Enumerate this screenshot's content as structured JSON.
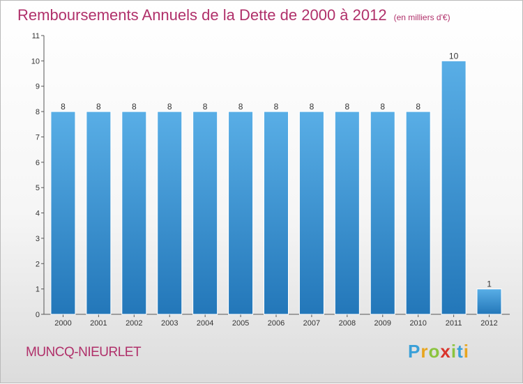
{
  "title": "Remboursements Annuels de la Dette de 2000 à 2012",
  "unit": "(en milliers d'€)",
  "town": "MUNCQ-NIEURLET",
  "logo": {
    "letters": [
      "P",
      "r",
      "o",
      "x",
      "i",
      "t",
      "i"
    ],
    "colors": [
      "#3aa0d8",
      "#e8a51e",
      "#8bc43f",
      "#d9342b",
      "#8bc43f",
      "#3aa0d8",
      "#e8a51e"
    ]
  },
  "colors": {
    "title": "#b0306a",
    "bar_top": "#59aee6",
    "bar_bottom": "#2377b9"
  },
  "chart_data": {
    "type": "bar",
    "categories": [
      "2000",
      "2001",
      "2002",
      "2003",
      "2004",
      "2005",
      "2006",
      "2007",
      "2008",
      "2009",
      "2010",
      "2011",
      "2012"
    ],
    "values": [
      8,
      8,
      8,
      8,
      8,
      8,
      8,
      8,
      8,
      8,
      8,
      10,
      1
    ],
    "data_labels": [
      "8",
      "8",
      "8",
      "8",
      "8",
      "8",
      "8",
      "8",
      "8",
      "8",
      "8",
      "10",
      "1"
    ],
    "yticks": [
      0,
      1,
      2,
      3,
      4,
      5,
      6,
      7,
      8,
      9,
      10,
      11
    ],
    "ylim": [
      0,
      11
    ],
    "grid": false
  }
}
